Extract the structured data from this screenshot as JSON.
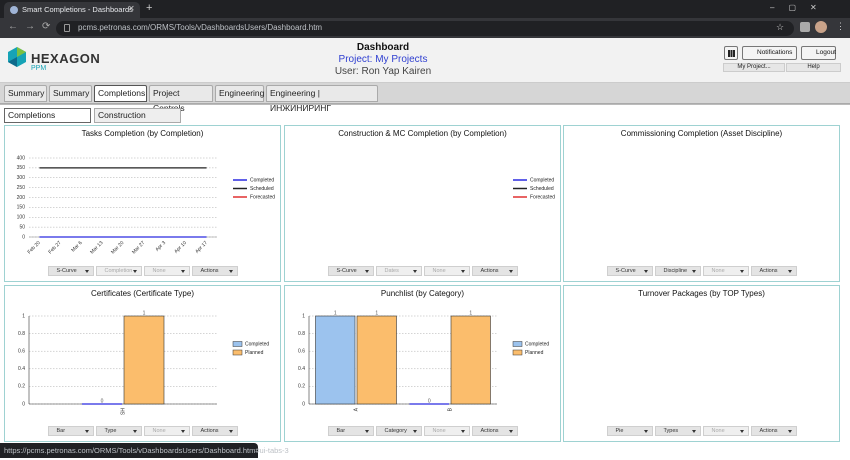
{
  "browser": {
    "tab_title": "Smart Completions - Dashboards",
    "url": "pcms.petronas.com/ORMS/Tools/vDashboardsUsers/Dashboard.htm",
    "status_url": "https://pcms.petronas.com/ORMS/Tools/vDashboardsUsers/Dashboard.htm#ui-tabs-3"
  },
  "header": {
    "logo": "HEXAGON",
    "logo_sub": "PPM",
    "title": "Dashboard",
    "project": "Project: My Projects",
    "user": "User: Ron Yap Kairen",
    "buttons": [
      "Notifications",
      "Logout"
    ],
    "menus": [
      "My Project...",
      "Help"
    ]
  },
  "tabs": [
    "Summary",
    "Summary",
    "Completions",
    "Project Controls",
    "Engineering",
    "Engineering | ИНЖИНИРИНГ"
  ],
  "active_tab": 2,
  "subtabs": [
    "Completions Overview",
    "Construction Overview"
  ],
  "active_subtab": 0,
  "panels": [
    {
      "title": "Tasks Completion (by Completion)",
      "chart": {
        "type": "line",
        "categories": [
          "Feb 20",
          "Feb 27",
          "Mar 6",
          "Mar 13",
          "Mar 20",
          "Mar 27",
          "Apr 3",
          "Apr 10",
          "Apr 17"
        ],
        "series": [
          {
            "name": "Completed",
            "color": "#2a2ae0",
            "values": [
              0,
              0,
              0,
              0,
              0,
              0,
              0,
              0,
              0
            ]
          },
          {
            "name": "Scheduled",
            "color": "#222222",
            "values": [
              350,
              350,
              350,
              350,
              350,
              350,
              350,
              350,
              350
            ]
          },
          {
            "name": "Forecasted",
            "color": "#e03030",
            "values": [
              null,
              null,
              null,
              null,
              null,
              null,
              null,
              null,
              null
            ]
          }
        ],
        "ylim": [
          0,
          400
        ],
        "yticks": [
          0,
          50,
          100,
          150,
          200,
          250,
          300,
          350,
          400
        ],
        "grid": true
      },
      "controls": [
        {
          "label": "S-Curve"
        },
        {
          "label": "Completion",
          "disabled": true
        },
        {
          "label": "None",
          "disabled": true
        },
        {
          "label": "Actions"
        }
      ]
    },
    {
      "title": "Construction & MC Completion (by Completion)",
      "chart": {
        "type": "line",
        "series": [
          {
            "name": "Completed",
            "color": "#2a2ae0",
            "values": []
          },
          {
            "name": "Scheduled",
            "color": "#222222",
            "values": []
          },
          {
            "name": "Forecasted",
            "color": "#e03030",
            "values": []
          }
        ]
      },
      "controls": [
        {
          "label": "S-Curve"
        },
        {
          "label": "Dates",
          "disabled": true
        },
        {
          "label": "None",
          "disabled": true
        },
        {
          "label": "Actions"
        }
      ]
    },
    {
      "title": "Commissioning Completion (Asset Discipline)",
      "controls": [
        {
          "label": "S-Curve"
        },
        {
          "label": "Discipline"
        },
        {
          "label": "None",
          "disabled": true
        },
        {
          "label": "Actions"
        }
      ]
    },
    {
      "title": "Certificates (Certificate Type)",
      "chart": {
        "type": "bar",
        "categories": [
          "SH"
        ],
        "series": [
          {
            "name": "Completed",
            "color": "#9cc3ee",
            "values": [
              0
            ]
          },
          {
            "name": "Planned",
            "color": "#fbbd6c",
            "values": [
              1
            ]
          }
        ],
        "ylim": [
          0,
          1
        ],
        "yticks": [
          0,
          0.2,
          0.4,
          0.6,
          0.8,
          1
        ],
        "grid": true
      },
      "controls": [
        {
          "label": "Bar"
        },
        {
          "label": "Type"
        },
        {
          "label": "None",
          "disabled": true
        },
        {
          "label": "Actions"
        }
      ]
    },
    {
      "title": "Punchlist (by Category)",
      "chart": {
        "type": "bar",
        "categories": [
          "A",
          "B"
        ],
        "series": [
          {
            "name": "Completed",
            "color": "#9cc3ee",
            "values": [
              1,
              0
            ]
          },
          {
            "name": "Planned",
            "color": "#fbbd6c",
            "values": [
              1,
              1
            ]
          }
        ],
        "ylim": [
          0,
          1
        ],
        "yticks": [
          0,
          0.2,
          0.4,
          0.6,
          0.8,
          1
        ],
        "grid": true
      },
      "controls": [
        {
          "label": "Bar"
        },
        {
          "label": "Category"
        },
        {
          "label": "None",
          "disabled": true
        },
        {
          "label": "Actions"
        }
      ]
    },
    {
      "title": "Turnover Packages (by TOP Types)",
      "controls": [
        {
          "label": "Pie"
        },
        {
          "label": "Types"
        },
        {
          "label": "None",
          "disabled": true
        },
        {
          "label": "Actions"
        }
      ]
    }
  ]
}
